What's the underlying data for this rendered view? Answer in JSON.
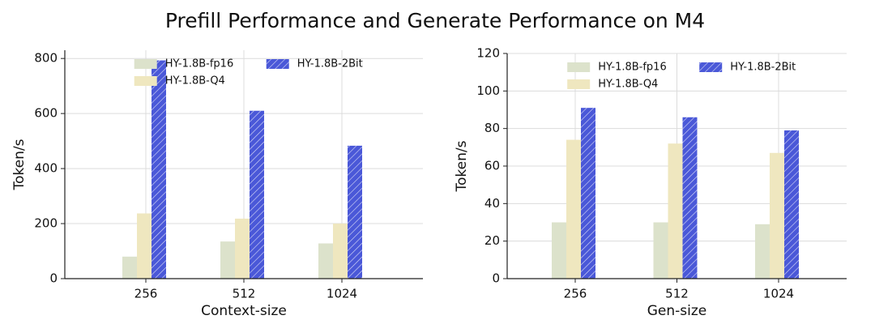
{
  "title": "Prefill Performance and Generate Performance on M4",
  "chart_data": [
    {
      "type": "bar",
      "xlabel": "Context-size",
      "ylabel": "Token/s",
      "categories": [
        "256",
        "512",
        "1024"
      ],
      "series": [
        {
          "name": "HY-1.8B-fp16",
          "color": "#dce2cb",
          "values": [
            80,
            135,
            128
          ]
        },
        {
          "name": "HY-1.8B-Q4",
          "color": "#efe7bf",
          "values": [
            237,
            218,
            200
          ]
        },
        {
          "name": "HY-1.8B-2Bit",
          "color": "#4a58d8",
          "hatch": true,
          "values": [
            793,
            610,
            483
          ]
        }
      ],
      "ylim": [
        0,
        830
      ],
      "yticks": [
        0,
        200,
        400,
        600,
        800
      ],
      "grid": true,
      "legend": "upper center"
    },
    {
      "type": "bar",
      "xlabel": "Gen-size",
      "ylabel": "Token/s",
      "categories": [
        "256",
        "512",
        "1024"
      ],
      "series": [
        {
          "name": "HY-1.8B-fp16",
          "color": "#dce2cb",
          "values": [
            30,
            30,
            29
          ]
        },
        {
          "name": "HY-1.8B-Q4",
          "color": "#efe7bf",
          "values": [
            74,
            72,
            67
          ]
        },
        {
          "name": "HY-1.8B-2Bit",
          "color": "#4a58d8",
          "hatch": true,
          "values": [
            91,
            86,
            79
          ]
        }
      ],
      "ylim": [
        0,
        120
      ],
      "yticks": [
        0,
        20,
        40,
        60,
        80,
        100,
        120
      ],
      "grid": true,
      "legend": "upper center"
    }
  ]
}
